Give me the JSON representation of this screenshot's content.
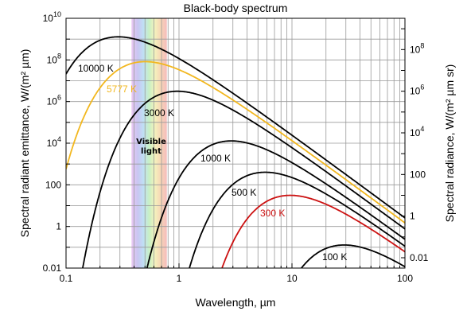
{
  "chart_data": {
    "type": "line",
    "title": "Black-body spectrum",
    "xlabel": "Wavelength, µm",
    "ylabel_left": "Spectral radiant emittance, W/(m² µm)",
    "ylabel_right": "Spectral radiance, W/(m² µm sr)",
    "x_scale": "log",
    "y_scale": "log",
    "xlim": [
      0.1,
      100
    ],
    "ylim": [
      0.01,
      10000000000
    ],
    "grid": true,
    "x_ticks": [
      "0.1",
      "1",
      "10",
      "100"
    ],
    "y_ticks_left": [
      "0.01",
      "1",
      "100",
      "10^4",
      "10^6",
      "10^8",
      "10^10"
    ],
    "y_ticks_right": [
      "0.01",
      "1",
      "100",
      "10^4",
      "10^6",
      "10^8"
    ],
    "visible_band": {
      "label_line1": "Visible",
      "label_line2": "light",
      "range_um": [
        0.38,
        0.78
      ]
    },
    "series": [
      {
        "name": "10000 K",
        "temperature_K": 10000,
        "color": "#000000"
      },
      {
        "name": "5777 K",
        "temperature_K": 5777,
        "color": "#f2b71e"
      },
      {
        "name": "3000 K",
        "temperature_K": 3000,
        "color": "#000000"
      },
      {
        "name": "1000 K",
        "temperature_K": 1000,
        "color": "#000000"
      },
      {
        "name": "500 K",
        "temperature_K": 500,
        "color": "#000000"
      },
      {
        "name": "300 K",
        "temperature_K": 300,
        "color": "#cc1111"
      },
      {
        "name": "100 K",
        "temperature_K": 100,
        "color": "#000000"
      }
    ]
  }
}
